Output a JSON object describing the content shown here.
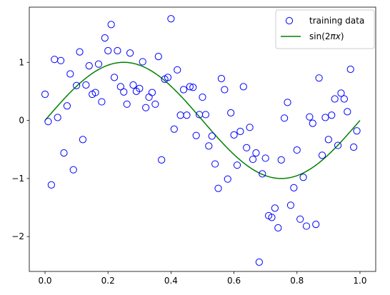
{
  "chart_data": {
    "type": "scatter",
    "title": "",
    "xlabel": "",
    "ylabel": "",
    "xlim": [
      -0.05,
      1.05
    ],
    "ylim": [
      -2.6,
      1.95
    ],
    "xticks": [
      0.0,
      0.2,
      0.4,
      0.6,
      0.8,
      1.0
    ],
    "xtick_labels": [
      "0.0",
      "0.2",
      "0.4",
      "0.6",
      "0.8",
      "1.0"
    ],
    "yticks": [
      -2,
      -1,
      0,
      1
    ],
    "ytick_labels": [
      "−2",
      "−1",
      "0",
      "1"
    ],
    "grid": false,
    "legend_position": "top-right",
    "series": [
      {
        "name": "training data",
        "type": "scatter",
        "marker": "open-circle",
        "color": "#0000ff",
        "points": [
          [
            0.0,
            0.45
          ],
          [
            0.01,
            -0.02
          ],
          [
            0.02,
            -1.11
          ],
          [
            0.03,
            1.05
          ],
          [
            0.04,
            0.05
          ],
          [
            0.05,
            1.03
          ],
          [
            0.06,
            -0.56
          ],
          [
            0.07,
            0.25
          ],
          [
            0.08,
            0.8
          ],
          [
            0.09,
            -0.85
          ],
          [
            0.1,
            0.6
          ],
          [
            0.11,
            1.18
          ],
          [
            0.12,
            -0.33
          ],
          [
            0.13,
            0.61
          ],
          [
            0.14,
            0.94
          ],
          [
            0.15,
            0.45
          ],
          [
            0.16,
            0.48
          ],
          [
            0.17,
            0.97
          ],
          [
            0.18,
            0.32
          ],
          [
            0.19,
            1.42
          ],
          [
            0.2,
            1.2
          ],
          [
            0.21,
            1.65
          ],
          [
            0.22,
            0.74
          ],
          [
            0.23,
            1.2
          ],
          [
            0.24,
            0.58
          ],
          [
            0.25,
            0.49
          ],
          [
            0.26,
            0.28
          ],
          [
            0.27,
            1.16
          ],
          [
            0.28,
            0.61
          ],
          [
            0.29,
            0.5
          ],
          [
            0.3,
            0.55
          ],
          [
            0.31,
            1.01
          ],
          [
            0.32,
            0.22
          ],
          [
            0.33,
            0.4
          ],
          [
            0.34,
            0.48
          ],
          [
            0.35,
            0.28
          ],
          [
            0.36,
            1.1
          ],
          [
            0.37,
            -0.68
          ],
          [
            0.38,
            0.71
          ],
          [
            0.39,
            0.74
          ],
          [
            0.4,
            1.75
          ],
          [
            0.41,
            -0.15
          ],
          [
            0.42,
            0.87
          ],
          [
            0.43,
            0.09
          ],
          [
            0.44,
            0.53
          ],
          [
            0.45,
            0.09
          ],
          [
            0.46,
            0.58
          ],
          [
            0.47,
            0.57
          ],
          [
            0.48,
            -0.26
          ],
          [
            0.49,
            0.1
          ],
          [
            0.5,
            0.4
          ],
          [
            0.51,
            0.1
          ],
          [
            0.52,
            -0.44
          ],
          [
            0.53,
            -0.27
          ],
          [
            0.54,
            -0.75
          ],
          [
            0.55,
            -1.17
          ],
          [
            0.56,
            0.72
          ],
          [
            0.57,
            0.53
          ],
          [
            0.58,
            -1.01
          ],
          [
            0.59,
            0.13
          ],
          [
            0.6,
            -0.25
          ],
          [
            0.61,
            -0.77
          ],
          [
            0.62,
            -0.19
          ],
          [
            0.63,
            0.58
          ],
          [
            0.64,
            -0.47
          ],
          [
            0.65,
            -0.12
          ],
          [
            0.66,
            -0.67
          ],
          [
            0.67,
            -0.56
          ],
          [
            0.68,
            -2.44
          ],
          [
            0.69,
            -0.92
          ],
          [
            0.7,
            -0.65
          ],
          [
            0.71,
            -1.64
          ],
          [
            0.72,
            -1.67
          ],
          [
            0.73,
            -1.51
          ],
          [
            0.74,
            -1.85
          ],
          [
            0.75,
            -0.68
          ],
          [
            0.76,
            0.04
          ],
          [
            0.77,
            0.31
          ],
          [
            0.78,
            -1.46
          ],
          [
            0.79,
            -1.16
          ],
          [
            0.8,
            -0.51
          ],
          [
            0.81,
            -1.7
          ],
          [
            0.82,
            -0.98
          ],
          [
            0.83,
            -1.82
          ],
          [
            0.84,
            0.06
          ],
          [
            0.85,
            -0.05
          ],
          [
            0.86,
            -1.79
          ],
          [
            0.87,
            0.73
          ],
          [
            0.88,
            -0.6
          ],
          [
            0.89,
            0.05
          ],
          [
            0.9,
            -0.33
          ],
          [
            0.91,
            0.09
          ],
          [
            0.92,
            0.37
          ],
          [
            0.93,
            -0.43
          ],
          [
            0.94,
            0.47
          ],
          [
            0.95,
            0.37
          ],
          [
            0.96,
            0.15
          ],
          [
            0.97,
            0.88
          ],
          [
            0.98,
            -0.46
          ],
          [
            0.99,
            -0.18
          ]
        ]
      },
      {
        "name": "sin(2πx)",
        "type": "line",
        "color": "#008000",
        "function": "sin(2*pi*x)",
        "x_range": [
          0.0,
          1.0
        ]
      }
    ]
  },
  "legend": {
    "entries": [
      {
        "label": "training data"
      },
      {
        "label_prefix": "sin(2",
        "label_math": "πx",
        "label_suffix": ")"
      }
    ]
  }
}
